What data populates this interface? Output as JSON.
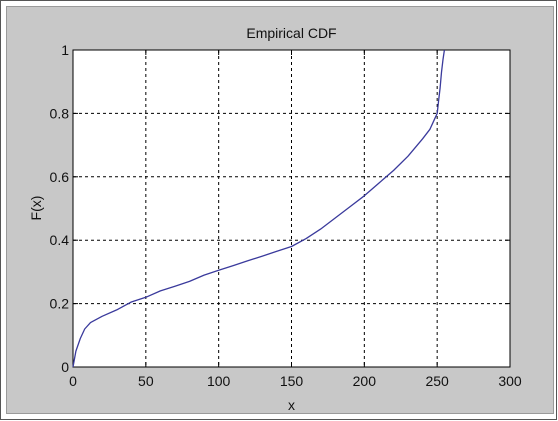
{
  "chart_data": {
    "type": "line",
    "title": "Empirical CDF",
    "xlabel": "x",
    "ylabel": "F(x)",
    "xlim": [
      0,
      300
    ],
    "ylim": [
      0,
      1
    ],
    "xticks": [
      "0",
      "50",
      "100",
      "150",
      "200",
      "250",
      "300"
    ],
    "yticks": [
      "0",
      "0.2",
      "0.4",
      "0.6",
      "0.8",
      "1"
    ],
    "grid": true,
    "series": [
      {
        "color": "#3a3a9c",
        "x": [
          0,
          2,
          5,
          8,
          12,
          20,
          30,
          40,
          50,
          60,
          70,
          80,
          90,
          100,
          110,
          120,
          130,
          140,
          150,
          160,
          170,
          180,
          190,
          200,
          210,
          220,
          230,
          240,
          245,
          248,
          250,
          251,
          252,
          253,
          254,
          255
        ],
        "y": [
          0,
          0.05,
          0.09,
          0.12,
          0.14,
          0.16,
          0.18,
          0.205,
          0.22,
          0.24,
          0.255,
          0.27,
          0.29,
          0.305,
          0.32,
          0.335,
          0.35,
          0.365,
          0.38,
          0.405,
          0.435,
          0.47,
          0.505,
          0.54,
          0.58,
          0.62,
          0.665,
          0.72,
          0.75,
          0.78,
          0.8,
          0.84,
          0.88,
          0.93,
          0.97,
          1.0
        ]
      }
    ]
  }
}
